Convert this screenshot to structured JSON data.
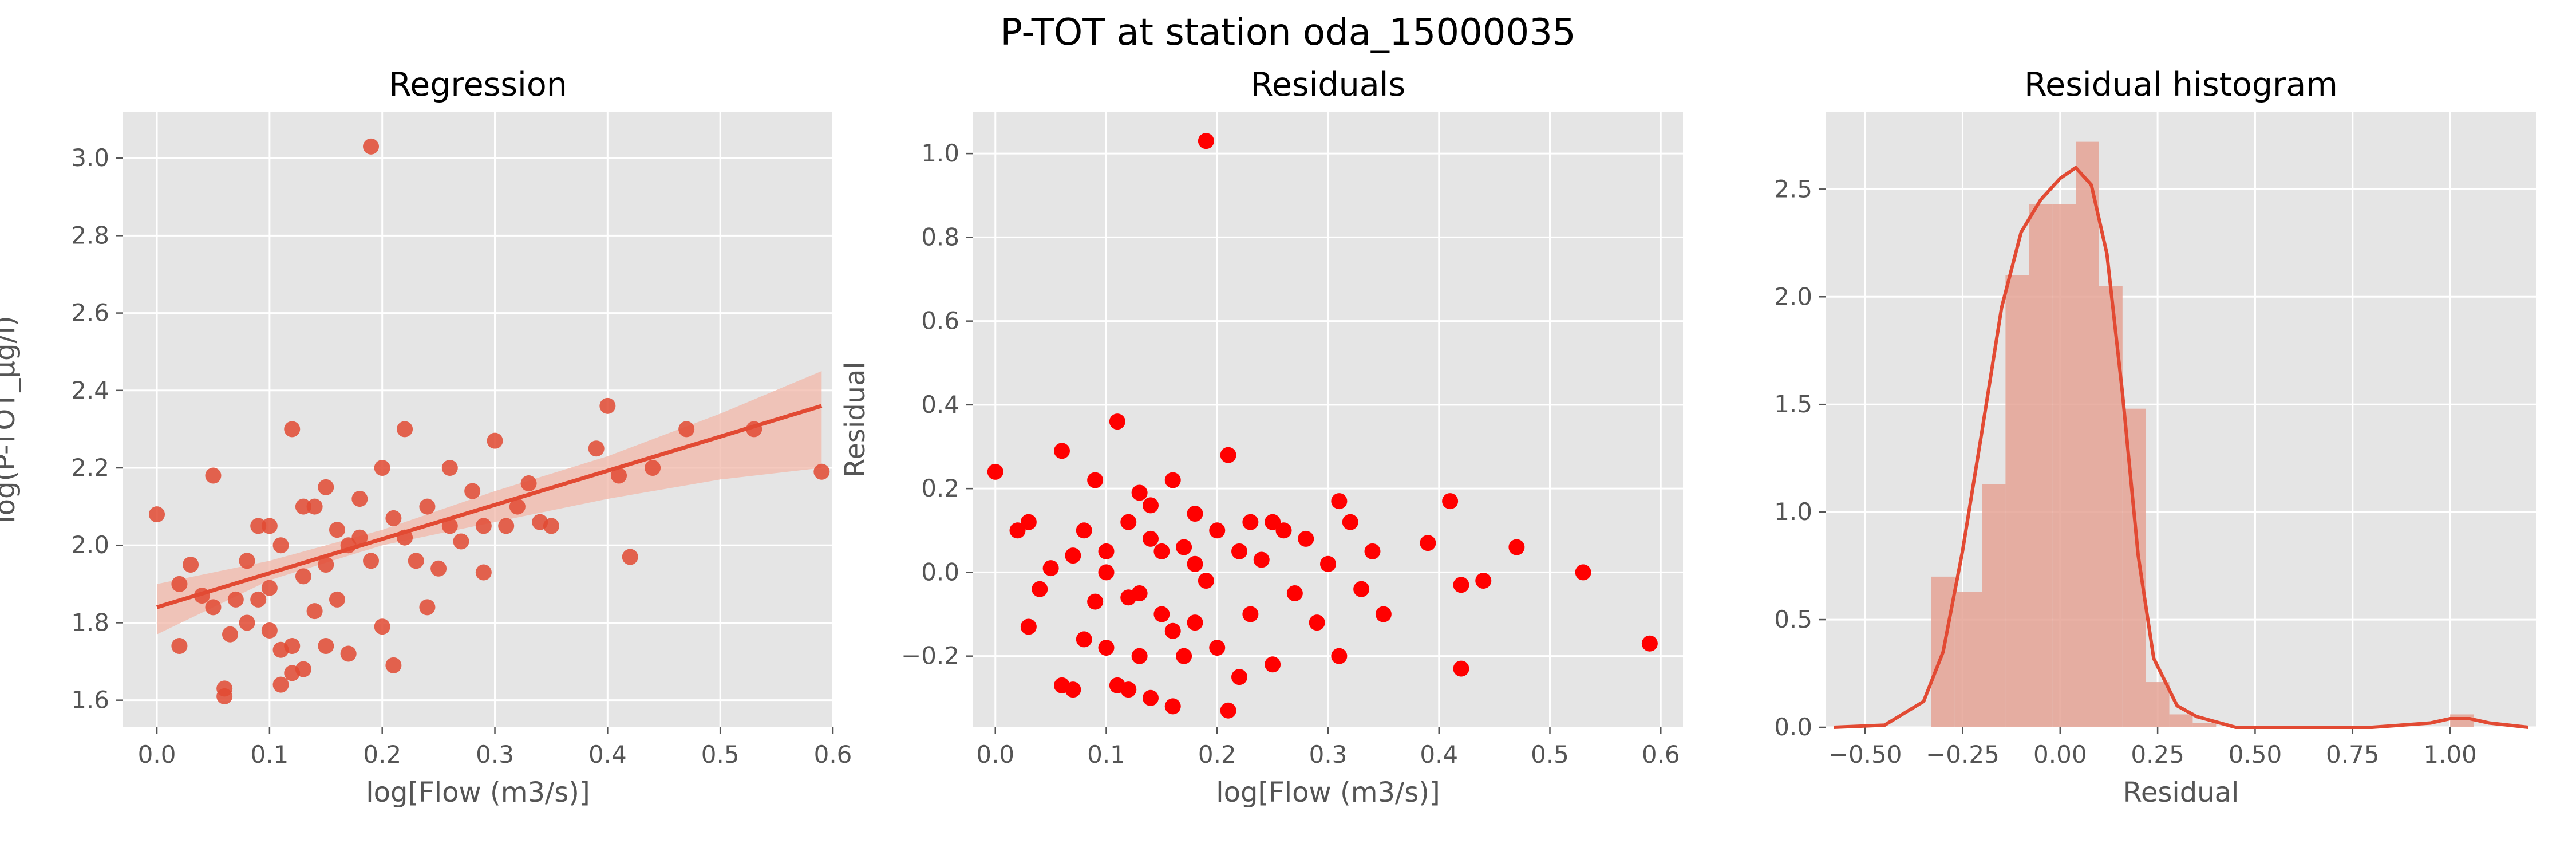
{
  "figure": {
    "suptitle": "P-TOT at station oda_15000035",
    "colors": {
      "panel_bg": "#e5e5e5",
      "grid": "#ffffff",
      "tick_text": "#555555",
      "label_text": "#555555",
      "title_text": "#000000",
      "regression_points": "#e24a33",
      "regression_line": "#e24a33",
      "confidence_band": "#f2b7a8",
      "residual_points": "#ff0000",
      "histogram_bars": "#e5a395",
      "kde_line": "#e24a33"
    }
  },
  "chart_data": [
    {
      "type": "scatter",
      "title": "Regression",
      "xlabel": "log[Flow (m3/s)]",
      "ylabel": "log(P-TOT_µg/l)",
      "xlim": [
        -0.03,
        0.6
      ],
      "ylim": [
        1.53,
        3.12
      ],
      "xticks": [
        0.0,
        0.1,
        0.2,
        0.3,
        0.4,
        0.5,
        0.6
      ],
      "xtick_labels": [
        "0.0",
        "0.1",
        "0.2",
        "0.3",
        "0.4",
        "0.5",
        "0.6"
      ],
      "yticks": [
        1.6,
        1.8,
        2.0,
        2.2,
        2.4,
        2.6,
        2.8,
        3.0
      ],
      "ytick_labels": [
        "1.6",
        "1.8",
        "2.0",
        "2.2",
        "2.4",
        "2.6",
        "2.8",
        "3.0"
      ],
      "grid": true,
      "fit_line": {
        "x": [
          0.0,
          0.59
        ],
        "y": [
          1.84,
          2.36
        ]
      },
      "confidence_band": {
        "x": [
          0.0,
          0.1,
          0.2,
          0.3,
          0.4,
          0.5,
          0.59
        ],
        "lower": [
          1.77,
          1.91,
          2.0,
          2.06,
          2.12,
          2.17,
          2.2
        ],
        "upper": [
          1.9,
          1.96,
          2.04,
          2.14,
          2.23,
          2.34,
          2.45
        ]
      },
      "points": [
        [
          0.0,
          2.08
        ],
        [
          0.02,
          1.9
        ],
        [
          0.03,
          1.95
        ],
        [
          0.04,
          1.87
        ],
        [
          0.05,
          1.84
        ],
        [
          0.06,
          1.61
        ],
        [
          0.06,
          1.63
        ],
        [
          0.065,
          1.77
        ],
        [
          0.07,
          1.86
        ],
        [
          0.08,
          1.8
        ],
        [
          0.09,
          1.86
        ],
        [
          0.1,
          1.89
        ],
        [
          0.1,
          1.78
        ],
        [
          0.11,
          1.73
        ],
        [
          0.11,
          1.64
        ],
        [
          0.12,
          1.67
        ],
        [
          0.12,
          1.74
        ],
        [
          0.13,
          1.92
        ],
        [
          0.13,
          1.68
        ],
        [
          0.14,
          1.83
        ],
        [
          0.15,
          1.95
        ],
        [
          0.15,
          1.74
        ],
        [
          0.16,
          1.86
        ],
        [
          0.17,
          1.72
        ],
        [
          0.18,
          2.02
        ],
        [
          0.19,
          3.03
        ],
        [
          0.2,
          1.79
        ],
        [
          0.21,
          1.69
        ],
        [
          0.22,
          2.02
        ],
        [
          0.23,
          1.96
        ],
        [
          0.24,
          1.84
        ],
        [
          0.25,
          1.94
        ],
        [
          0.26,
          2.2
        ],
        [
          0.28,
          2.14
        ],
        [
          0.29,
          1.93
        ],
        [
          0.3,
          2.27
        ],
        [
          0.31,
          2.05
        ],
        [
          0.33,
          2.16
        ],
        [
          0.34,
          2.06
        ],
        [
          0.35,
          2.05
        ],
        [
          0.39,
          2.25
        ],
        [
          0.4,
          2.36
        ],
        [
          0.41,
          2.18
        ],
        [
          0.42,
          1.97
        ],
        [
          0.44,
          2.2
        ],
        [
          0.47,
          2.3
        ],
        [
          0.53,
          2.3
        ],
        [
          0.59,
          2.19
        ],
        [
          0.14,
          2.1
        ],
        [
          0.16,
          2.04
        ],
        [
          0.18,
          2.12
        ],
        [
          0.2,
          2.2
        ],
        [
          0.21,
          2.07
        ],
        [
          0.22,
          2.3
        ],
        [
          0.24,
          2.1
        ],
        [
          0.26,
          2.05
        ],
        [
          0.27,
          2.01
        ],
        [
          0.29,
          2.05
        ],
        [
          0.32,
          2.1
        ],
        [
          0.12,
          2.3
        ],
        [
          0.11,
          2.0
        ],
        [
          0.09,
          2.05
        ],
        [
          0.13,
          2.1
        ],
        [
          0.15,
          2.15
        ],
        [
          0.17,
          2.0
        ],
        [
          0.19,
          1.96
        ],
        [
          0.02,
          1.74
        ],
        [
          0.05,
          2.18
        ],
        [
          0.08,
          1.96
        ],
        [
          0.1,
          2.05
        ]
      ]
    },
    {
      "type": "scatter",
      "title": "Residuals",
      "xlabel": "log[Flow (m3/s)]",
      "ylabel": "Residual",
      "xlim": [
        -0.02,
        0.62
      ],
      "ylim": [
        -0.37,
        1.1
      ],
      "xticks": [
        0.0,
        0.1,
        0.2,
        0.3,
        0.4,
        0.5,
        0.6
      ],
      "xtick_labels": [
        "0.0",
        "0.1",
        "0.2",
        "0.3",
        "0.4",
        "0.5",
        "0.6"
      ],
      "yticks": [
        -0.2,
        0.0,
        0.2,
        0.4,
        0.6,
        0.8,
        1.0
      ],
      "ytick_labels": [
        "−0.2",
        "0.0",
        "0.2",
        "0.4",
        "0.6",
        "0.8",
        "1.0"
      ],
      "grid": true,
      "points": [
        [
          0.0,
          0.24
        ],
        [
          0.02,
          0.1
        ],
        [
          0.03,
          -0.13
        ],
        [
          0.03,
          0.12
        ],
        [
          0.04,
          -0.04
        ],
        [
          0.05,
          0.01
        ],
        [
          0.06,
          -0.27
        ],
        [
          0.06,
          0.29
        ],
        [
          0.07,
          -0.28
        ],
        [
          0.07,
          0.04
        ],
        [
          0.08,
          -0.16
        ],
        [
          0.08,
          0.1
        ],
        [
          0.09,
          -0.07
        ],
        [
          0.09,
          0.22
        ],
        [
          0.1,
          -0.18
        ],
        [
          0.1,
          0.05
        ],
        [
          0.11,
          -0.27
        ],
        [
          0.11,
          0.36
        ],
        [
          0.12,
          -0.28
        ],
        [
          0.12,
          0.12
        ],
        [
          0.13,
          -0.2
        ],
        [
          0.13,
          -0.05
        ],
        [
          0.14,
          -0.3
        ],
        [
          0.14,
          0.16
        ],
        [
          0.15,
          0.05
        ],
        [
          0.15,
          -0.1
        ],
        [
          0.16,
          -0.32
        ],
        [
          0.16,
          0.22
        ],
        [
          0.17,
          -0.2
        ],
        [
          0.17,
          0.06
        ],
        [
          0.18,
          -0.12
        ],
        [
          0.18,
          0.14
        ],
        [
          0.19,
          1.03
        ],
        [
          0.19,
          -0.02
        ],
        [
          0.2,
          -0.18
        ],
        [
          0.2,
          0.1
        ],
        [
          0.21,
          0.28
        ],
        [
          0.21,
          -0.33
        ],
        [
          0.22,
          0.05
        ],
        [
          0.22,
          -0.25
        ],
        [
          0.23,
          0.12
        ],
        [
          0.23,
          -0.1
        ],
        [
          0.24,
          0.03
        ],
        [
          0.25,
          -0.22
        ],
        [
          0.25,
          0.12
        ],
        [
          0.26,
          0.1
        ],
        [
          0.27,
          -0.05
        ],
        [
          0.28,
          0.08
        ],
        [
          0.29,
          -0.12
        ],
        [
          0.3,
          0.02
        ],
        [
          0.31,
          0.17
        ],
        [
          0.31,
          -0.2
        ],
        [
          0.32,
          0.12
        ],
        [
          0.33,
          -0.04
        ],
        [
          0.34,
          0.05
        ],
        [
          0.35,
          -0.1
        ],
        [
          0.39,
          0.07
        ],
        [
          0.41,
          0.17
        ],
        [
          0.42,
          -0.03
        ],
        [
          0.42,
          -0.23
        ],
        [
          0.44,
          -0.02
        ],
        [
          0.47,
          0.06
        ],
        [
          0.53,
          0.0
        ],
        [
          0.59,
          -0.17
        ],
        [
          0.12,
          -0.06
        ],
        [
          0.14,
          0.08
        ],
        [
          0.16,
          -0.14
        ],
        [
          0.18,
          0.02
        ],
        [
          0.1,
          0.0
        ],
        [
          0.13,
          0.19
        ]
      ]
    },
    {
      "type": "bar",
      "title": "Residual histogram",
      "xlabel": "Residual",
      "ylabel": "",
      "xlim": [
        -0.6,
        1.22
      ],
      "ylim": [
        0.0,
        2.86
      ],
      "xticks": [
        -0.5,
        -0.25,
        0.0,
        0.25,
        0.5,
        0.75,
        1.0
      ],
      "xtick_labels": [
        "−0.50",
        "−0.25",
        "0.00",
        "0.25",
        "0.50",
        "0.75",
        "1.00"
      ],
      "yticks": [
        0.0,
        0.5,
        1.0,
        1.5,
        2.0,
        2.5
      ],
      "ytick_labels": [
        "0.0",
        "0.5",
        "1.0",
        "1.5",
        "2.0",
        "2.5"
      ],
      "grid": true,
      "bin_edges": [
        -0.33,
        -0.27,
        -0.2,
        -0.14,
        -0.08,
        -0.02,
        0.04,
        0.1,
        0.16,
        0.22,
        0.28,
        0.34,
        0.4,
        0.46,
        0.52,
        0.58,
        0.64,
        0.7,
        0.76,
        0.82,
        0.88,
        0.94,
        1.0,
        1.06
      ],
      "densities": [
        0.7,
        0.63,
        1.13,
        2.1,
        2.43,
        2.43,
        2.72,
        2.05,
        1.48,
        0.21,
        0.06,
        0.02,
        0,
        0,
        0,
        0,
        0,
        0,
        0,
        0,
        0,
        0,
        0.06
      ],
      "kde": {
        "x": [
          -0.58,
          -0.45,
          -0.35,
          -0.3,
          -0.25,
          -0.2,
          -0.15,
          -0.1,
          -0.05,
          0.0,
          0.04,
          0.08,
          0.12,
          0.16,
          0.2,
          0.24,
          0.3,
          0.35,
          0.45,
          0.6,
          0.8,
          0.95,
          1.0,
          1.05,
          1.1,
          1.2
        ],
        "y": [
          0.0,
          0.01,
          0.12,
          0.35,
          0.82,
          1.38,
          1.95,
          2.3,
          2.45,
          2.55,
          2.6,
          2.52,
          2.2,
          1.55,
          0.8,
          0.32,
          0.1,
          0.05,
          0.0,
          0.0,
          0.0,
          0.02,
          0.04,
          0.04,
          0.02,
          0.0
        ]
      }
    }
  ]
}
